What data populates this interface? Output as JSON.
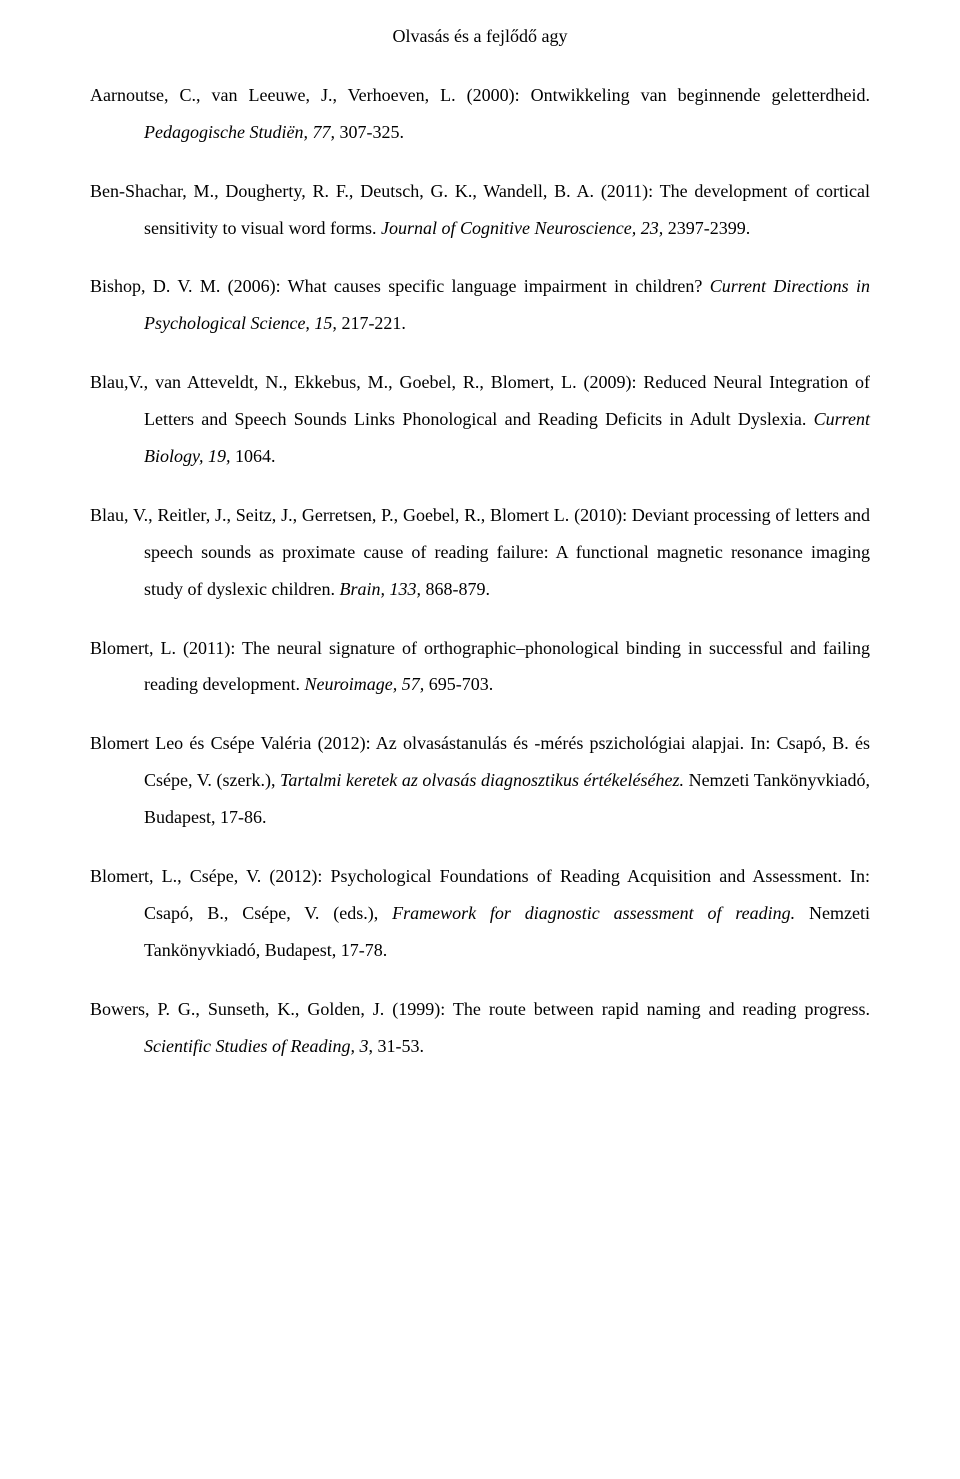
{
  "title": "Olvasás és a fejlődő agy",
  "refs": [
    {
      "pre": "Aarnoutse, C., van Leeuwe, J., Verhoeven, L. (2000): Ontwikkeling van beginnende geletterdheid. ",
      "ital1": "Pedagogische Studiën, 77,",
      "post": " 307-325.",
      "ital2": "",
      "tail": ""
    },
    {
      "pre": "Ben-Shachar, M., Dougherty, R. F., Deutsch, G. K., Wandell, B. A. (2011): The development of cortical sensitivity to visual word forms. ",
      "ital1": "Journal of Cognitive Neuroscience, 23,",
      "post": " 2397-2399.",
      "ital2": "",
      "tail": ""
    },
    {
      "pre": "Bishop, D. V. M. (2006): What causes specific language impairment in children? ",
      "ital1": "Current Directions in Psychological Science, 15,",
      "post": " 217-221.",
      "ital2": "",
      "tail": ""
    },
    {
      "pre": "Blau,V., van Atteveldt, N., Ekkebus, M., Goebel, R., Blomert, L. (2009): Reduced Neural Integration of Letters and Speech Sounds Links Phonological and Reading Deficits in Adult Dyslexia. ",
      "ital1": "Current Biology, 19,",
      "post": " 1064.",
      "ital2": "",
      "tail": ""
    },
    {
      "pre": "Blau, V., Reitler, J., Seitz, J., Gerretsen, P., Goebel, R., Blomert L. (2010): Deviant processing of letters and speech sounds as proximate cause of reading failure: A functional magnetic resonance imaging study of dyslexic children. ",
      "ital1": "Brain, 133,",
      "post": " 868-879.",
      "ital2": "",
      "tail": ""
    },
    {
      "pre": "Blomert, L. (2011): The neural signature of orthographic–phonological binding in successful and failing reading development. ",
      "ital1": "Neuroimage, 57,",
      "post": " 695-703.",
      "ital2": "",
      "tail": ""
    },
    {
      "pre": "Blomert Leo és Csépe Valéria (2012): Az olvasástanulás és -mérés pszichológiai alapjai. In: Csapó, B. és Csépe, V. (szerk.), ",
      "ital1": "Tartalmi keretek az olvasás diagnosztikus értékeléséhez.",
      "post": " Nemzeti Tankönyvkiadó, Budapest, 17-86.",
      "ital2": "",
      "tail": ""
    },
    {
      "pre": "Blomert, L., Csépe, V. (2012): Psychological Foundations of Reading Acquisition and Assessment. In: Csapó, B., Csépe, V. (eds.), ",
      "ital1": "Framework for diagnostic assessment of reading.",
      "post": " Nemzeti Tankönyvkiadó, Budapest, 17-78.",
      "ital2": "",
      "tail": ""
    },
    {
      "pre": "Bowers, P. G., Sunseth, K., Golden, J.  (1999): The route between rapid naming and reading progress. ",
      "ital1": "Scientific Studies of Reading, 3",
      "post": ", 31-53.",
      "ital2": "",
      "tail": ""
    }
  ]
}
